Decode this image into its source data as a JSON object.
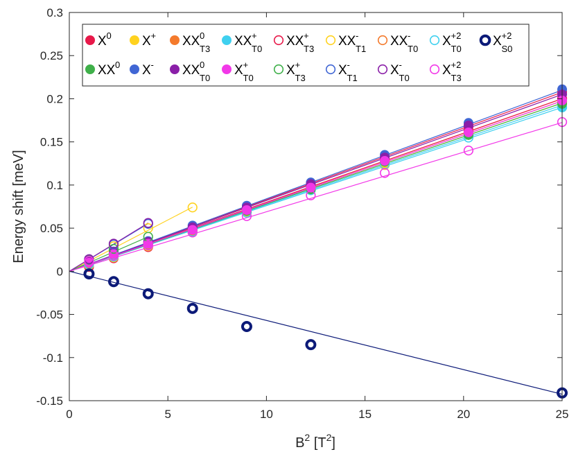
{
  "chart_data": {
    "type": "scatter",
    "title": "",
    "xlabel": {
      "base": "B",
      "sup": "2",
      "rest": " [T",
      "sup2": "2",
      "end": "]"
    },
    "ylabel": "Energy shift [meV]",
    "xlim": [
      0,
      25
    ],
    "ylim": [
      -0.15,
      0.3
    ],
    "xticks": [
      0,
      5,
      10,
      15,
      20,
      25
    ],
    "yticks": [
      -0.15,
      -0.1,
      -0.05,
      0,
      0.05,
      0.1,
      0.15,
      0.2,
      0.25,
      0.3
    ],
    "grid": false,
    "legend_position": "top",
    "series": [
      {
        "id": "X0",
        "base": "X",
        "sup": "0",
        "sub": "",
        "color": "#e8194a",
        "filled": true,
        "x": [
          1,
          2.25,
          4,
          6.25,
          9,
          12.25,
          16,
          20.25,
          25
        ],
        "y": [
          0.005,
          0.015,
          0.028,
          0.047,
          0.073,
          0.1,
          0.131,
          0.167,
          0.208
        ],
        "slope": 0.0083,
        "fit_x": [
          0,
          25
        ]
      },
      {
        "id": "X+",
        "base": "X",
        "sup": "+",
        "sub": "",
        "color": "#ffd21f",
        "filled": true,
        "x": [
          1,
          2.25,
          4,
          6.25,
          9,
          12.25,
          16,
          20.25,
          25
        ],
        "y": [
          0.007,
          0.016,
          0.029,
          0.045,
          0.068,
          0.097,
          0.123,
          0.158,
          0.195
        ],
        "slope": 0.0078,
        "fit_x": [
          0,
          25
        ]
      },
      {
        "id": "XX0T3",
        "base": "XX",
        "sup": "0",
        "sub": "T3",
        "color": "#f47a2c",
        "filled": true,
        "x": [
          1,
          2.25,
          4,
          6.25,
          9,
          12.25,
          16,
          20.25,
          25
        ],
        "y": [
          0.008,
          0.018,
          0.031,
          0.048,
          0.071,
          0.099,
          0.128,
          0.162,
          0.2
        ],
        "slope": 0.008,
        "fit_x": [
          0,
          25
        ]
      },
      {
        "id": "XX+T0",
        "base": "XX",
        "sup": "+",
        "sub": "T0",
        "color": "#3fd0ef",
        "filled": true,
        "x": [
          1,
          2.25,
          4,
          6.25,
          9,
          12.25,
          16,
          20.25,
          25
        ],
        "y": [
          0.009,
          0.019,
          0.032,
          0.049,
          0.07,
          0.096,
          0.127,
          0.158,
          0.19
        ],
        "slope": 0.0077,
        "fit_x": [
          0,
          25
        ]
      },
      {
        "id": "XX+T3",
        "base": "XX",
        "sup": "+",
        "sub": "T3",
        "color": "#e8194a",
        "filled": false,
        "x": [
          1,
          2.25,
          4,
          6.25,
          9,
          12.25,
          16,
          20.25,
          25
        ],
        "y": [
          0.01,
          0.02,
          0.033,
          0.05,
          0.072,
          0.098,
          0.129,
          0.163,
          0.2
        ],
        "slope": 0.008,
        "fit_x": [
          0,
          25
        ]
      },
      {
        "id": "XX-T1",
        "base": "XX",
        "sup": "-",
        "sub": "T1",
        "color": "#ffd21f",
        "filled": false,
        "x": [
          1,
          2.25,
          4,
          6.25
        ],
        "y": [
          0.012,
          0.029,
          0.05,
          0.074
        ],
        "slope": 0.0119,
        "fit_x": [
          0,
          6.25
        ]
      },
      {
        "id": "XX-T0",
        "base": "XX",
        "sup": "-",
        "sub": "T0",
        "color": "#f47a2c",
        "filled": false,
        "x": [
          1,
          2.25,
          4,
          6.25,
          9,
          12.25,
          16,
          20.25,
          25
        ],
        "y": [
          0.009,
          0.018,
          0.03,
          0.047,
          0.07,
          0.097,
          0.127,
          0.16,
          0.197
        ],
        "slope": 0.0079,
        "fit_x": [
          0,
          25
        ]
      },
      {
        "id": "X+2T0",
        "base": "X",
        "sup": "+2",
        "sub": "T0",
        "color": "#3fd0ef",
        "filled": false,
        "x": [
          1,
          2.25,
          4,
          6.25,
          9,
          12.25,
          16,
          20.25,
          25
        ],
        "y": [
          0.008,
          0.017,
          0.03,
          0.046,
          0.068,
          0.094,
          0.124,
          0.155,
          0.19
        ],
        "slope": 0.0076,
        "fit_x": [
          0,
          25
        ]
      },
      {
        "id": "X+2S0",
        "base": "X",
        "sup": "+2",
        "sub": "S0",
        "color": "#0c1a78",
        "filled": false,
        "thick": true,
        "x": [
          1,
          2.25,
          4,
          6.25,
          9,
          12.25,
          25
        ],
        "y": [
          -0.003,
          -0.012,
          -0.026,
          -0.043,
          -0.064,
          -0.085,
          -0.141
        ],
        "slope": -0.0057,
        "fit_x": [
          0,
          25
        ]
      },
      {
        "id": "XX0",
        "base": "XX",
        "sup": "0",
        "sub": "",
        "color": "#3fb04a",
        "filled": true,
        "x": [
          1,
          2.25,
          4,
          6.25,
          9,
          12.25,
          16,
          20.25,
          25
        ],
        "y": [
          0.01,
          0.021,
          0.033,
          0.049,
          0.07,
          0.095,
          0.127,
          0.158,
          0.194
        ],
        "slope": 0.0078,
        "fit_x": [
          0,
          25
        ]
      },
      {
        "id": "X-",
        "base": "X",
        "sup": "-",
        "sub": "",
        "color": "#4066d4",
        "filled": true,
        "x": [
          1,
          2.25,
          4,
          6.25,
          9,
          12.25,
          16,
          20.25,
          25
        ],
        "y": [
          0.012,
          0.023,
          0.035,
          0.053,
          0.076,
          0.103,
          0.135,
          0.172,
          0.211
        ],
        "slope": 0.0084,
        "fit_x": [
          0,
          25
        ]
      },
      {
        "id": "XX0T0",
        "base": "XX",
        "sup": "0",
        "sub": "T0",
        "color": "#8a1fa8",
        "filled": true,
        "x": [
          1,
          2.25,
          4,
          6.25,
          9,
          12.25,
          16,
          20.25,
          25
        ],
        "y": [
          0.011,
          0.022,
          0.034,
          0.051,
          0.074,
          0.101,
          0.132,
          0.169,
          0.205
        ],
        "slope": 0.0082,
        "fit_x": [
          0,
          25
        ]
      },
      {
        "id": "X+T0",
        "base": "X",
        "sup": "+",
        "sub": "T0",
        "color": "#f238e8",
        "filled": true,
        "x": [
          1,
          2.25,
          4,
          6.25,
          9,
          12.25,
          16,
          20.25,
          25
        ],
        "y": [
          0.01,
          0.02,
          0.032,
          0.048,
          0.071,
          0.097,
          0.128,
          0.161,
          0.198
        ],
        "slope": 0.0079,
        "fit_x": [
          0,
          25
        ]
      },
      {
        "id": "X+T3",
        "base": "X",
        "sup": "+",
        "sub": "T3",
        "color": "#3fb04a",
        "filled": false,
        "x": [
          1,
          2.25,
          4
        ],
        "y": [
          0.013,
          0.026,
          0.04
        ],
        "slope": 0.01,
        "fit_x": [
          0,
          4
        ]
      },
      {
        "id": "X-T1",
        "base": "X",
        "sup": "-",
        "sub": "T1",
        "color": "#4066d4",
        "filled": false,
        "x": [
          1,
          2.25,
          4
        ],
        "y": [
          0.014,
          0.031,
          0.055
        ],
        "slope": 0.0138,
        "fit_x": [
          0,
          4
        ]
      },
      {
        "id": "X-T0",
        "base": "X",
        "sup": "-",
        "sub": "T0",
        "color": "#8a1fa8",
        "filled": false,
        "x": [
          1,
          2.25,
          4
        ],
        "y": [
          0.014,
          0.032,
          0.056
        ],
        "slope": 0.014,
        "fit_x": [
          0,
          4
        ]
      },
      {
        "id": "X+2T3",
        "base": "X",
        "sup": "+2",
        "sub": "T3",
        "color": "#f238e8",
        "filled": false,
        "x": [
          1,
          2.25,
          4,
          6.25,
          9,
          12.25,
          16,
          20.25,
          25
        ],
        "y": [
          0.012,
          0.018,
          0.03,
          0.045,
          0.064,
          0.088,
          0.114,
          0.14,
          0.173
        ],
        "slope": 0.0069,
        "fit_x": [
          0,
          25
        ]
      }
    ]
  }
}
